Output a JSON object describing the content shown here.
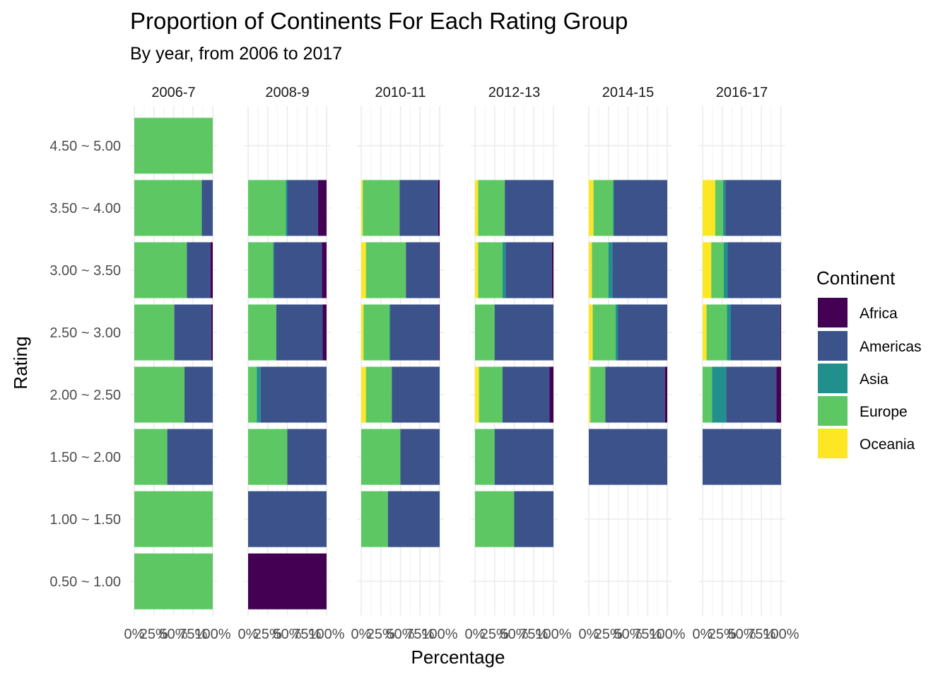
{
  "chart_data": {
    "type": "bar",
    "orientation": "horizontal-stacked-percent",
    "title": "Proportion of Continents For Each Rating Group",
    "subtitle": "By year, from 2006 to 2017",
    "xlabel": "Percentage",
    "ylabel": "Rating",
    "xlim": [
      0,
      100
    ],
    "x_ticks": [
      "0%",
      "25%",
      "50%",
      "75%",
      "100%"
    ],
    "x_tick_values": [
      0,
      25,
      50,
      75,
      100
    ],
    "categories": [
      "0.50 ~ 1.00",
      "1.00 ~ 1.50",
      "1.50 ~ 2.00",
      "2.00 ~ 2.50",
      "2.50 ~ 3.00",
      "3.00 ~ 3.50",
      "3.50 ~ 4.00",
      "4.50 ~ 5.00"
    ],
    "legend": {
      "title": "Continent",
      "placement": "right",
      "entries": [
        "Africa",
        "Americas",
        "Asia",
        "Europe",
        "Oceania"
      ]
    },
    "colors": {
      "Africa": "#440154",
      "Americas": "#3b528b",
      "Asia": "#21908c",
      "Europe": "#5dc863",
      "Oceania": "#fde725"
    },
    "grid": true,
    "stack_order_left_to_right": [
      "Oceania",
      "Europe",
      "Asia",
      "Americas",
      "Africa"
    ],
    "panels": [
      {
        "name": "2006-7",
        "bars": {
          "4.50 ~ 5.00": {
            "Oceania": 0,
            "Europe": 100,
            "Asia": 0,
            "Americas": 0,
            "Africa": 0
          },
          "3.50 ~ 4.00": {
            "Oceania": 0,
            "Europe": 86,
            "Asia": 0,
            "Americas": 14,
            "Africa": 0
          },
          "3.00 ~ 3.50": {
            "Oceania": 0,
            "Europe": 67,
            "Asia": 0,
            "Americas": 30,
            "Africa": 3
          },
          "2.50 ~ 3.00": {
            "Oceania": 0,
            "Europe": 51,
            "Asia": 0,
            "Americas": 47,
            "Africa": 2
          },
          "2.00 ~ 2.50": {
            "Oceania": 0,
            "Europe": 64,
            "Asia": 0,
            "Americas": 36,
            "Africa": 0
          },
          "1.50 ~ 2.00": {
            "Oceania": 0,
            "Europe": 42,
            "Asia": 0,
            "Americas": 58,
            "Africa": 0
          },
          "1.00 ~ 1.50": {
            "Oceania": 0,
            "Europe": 100,
            "Asia": 0,
            "Americas": 0,
            "Africa": 0
          },
          "0.50 ~ 1.00": {
            "Oceania": 0,
            "Europe": 100,
            "Asia": 0,
            "Americas": 0,
            "Africa": 0
          }
        }
      },
      {
        "name": "2008-9",
        "bars": {
          "3.50 ~ 4.00": {
            "Oceania": 0,
            "Europe": 48,
            "Asia": 2,
            "Americas": 39,
            "Africa": 11
          },
          "3.00 ~ 3.50": {
            "Oceania": 0,
            "Europe": 32,
            "Asia": 1,
            "Americas": 61,
            "Africa": 6
          },
          "2.50 ~ 3.00": {
            "Oceania": 0,
            "Europe": 36,
            "Asia": 0,
            "Americas": 59,
            "Africa": 5
          },
          "2.00 ~ 2.50": {
            "Oceania": 0,
            "Europe": 11,
            "Asia": 5,
            "Americas": 84,
            "Africa": 0
          },
          "1.50 ~ 2.00": {
            "Oceania": 0,
            "Europe": 50,
            "Asia": 0,
            "Americas": 50,
            "Africa": 0
          },
          "1.00 ~ 1.50": {
            "Oceania": 0,
            "Europe": 0,
            "Asia": 0,
            "Americas": 100,
            "Africa": 0
          },
          "0.50 ~ 1.00": {
            "Oceania": 0,
            "Europe": 0,
            "Asia": 0,
            "Americas": 0,
            "Africa": 100
          }
        }
      },
      {
        "name": "2010-11",
        "bars": {
          "3.50 ~ 4.00": {
            "Oceania": 2,
            "Europe": 47,
            "Asia": 0,
            "Americas": 49,
            "Africa": 2
          },
          "3.00 ~ 3.50": {
            "Oceania": 6,
            "Europe": 51,
            "Asia": 0,
            "Americas": 42,
            "Africa": 1
          },
          "2.50 ~ 3.00": {
            "Oceania": 3,
            "Europe": 33,
            "Asia": 1,
            "Americas": 62,
            "Africa": 1
          },
          "2.00 ~ 2.50": {
            "Oceania": 6,
            "Europe": 33,
            "Asia": 0,
            "Americas": 61,
            "Africa": 0
          },
          "1.50 ~ 2.00": {
            "Oceania": 0,
            "Europe": 50,
            "Asia": 0,
            "Americas": 50,
            "Africa": 0
          },
          "1.00 ~ 1.50": {
            "Oceania": 0,
            "Europe": 34,
            "Asia": 0,
            "Americas": 66,
            "Africa": 0
          }
        }
      },
      {
        "name": "2012-13",
        "bars": {
          "3.50 ~ 4.00": {
            "Oceania": 4,
            "Europe": 34,
            "Asia": 0,
            "Americas": 62,
            "Africa": 0
          },
          "3.00 ~ 3.50": {
            "Oceania": 4,
            "Europe": 31,
            "Asia": 4,
            "Americas": 59,
            "Africa": 2
          },
          "2.50 ~ 3.00": {
            "Oceania": 0,
            "Europe": 25,
            "Asia": 0,
            "Americas": 75,
            "Africa": 0
          },
          "2.00 ~ 2.50": {
            "Oceania": 5,
            "Europe": 30,
            "Asia": 0,
            "Americas": 60,
            "Africa": 5
          },
          "1.50 ~ 2.00": {
            "Oceania": 0,
            "Europe": 25,
            "Asia": 0,
            "Americas": 75,
            "Africa": 0
          },
          "1.00 ~ 1.50": {
            "Oceania": 0,
            "Europe": 50,
            "Asia": 0,
            "Americas": 50,
            "Africa": 0
          }
        }
      },
      {
        "name": "2014-15",
        "bars": {
          "3.50 ~ 4.00": {
            "Oceania": 6,
            "Europe": 25,
            "Asia": 1,
            "Americas": 68,
            "Africa": 0
          },
          "3.00 ~ 3.50": {
            "Oceania": 4,
            "Europe": 21,
            "Asia": 5,
            "Americas": 70,
            "Africa": 0
          },
          "2.50 ~ 3.00": {
            "Oceania": 5,
            "Europe": 29,
            "Asia": 3,
            "Americas": 63,
            "Africa": 0
          },
          "2.00 ~ 2.50": {
            "Oceania": 2,
            "Europe": 19,
            "Asia": 0,
            "Americas": 76,
            "Africa": 3
          },
          "1.50 ~ 2.00": {
            "Oceania": 0,
            "Europe": 0,
            "Asia": 0,
            "Americas": 100,
            "Africa": 0
          }
        }
      },
      {
        "name": "2016-17",
        "bars": {
          "3.50 ~ 4.00": {
            "Oceania": 16,
            "Europe": 10,
            "Asia": 3,
            "Americas": 71,
            "Africa": 0
          },
          "3.00 ~ 3.50": {
            "Oceania": 11,
            "Europe": 16,
            "Asia": 5,
            "Americas": 68,
            "Africa": 0
          },
          "2.50 ~ 3.00": {
            "Oceania": 5,
            "Europe": 26,
            "Asia": 5,
            "Americas": 63,
            "Africa": 1
          },
          "2.00 ~ 2.50": {
            "Oceania": 0,
            "Europe": 12,
            "Asia": 18,
            "Americas": 64,
            "Africa": 6
          },
          "1.50 ~ 2.00": {
            "Oceania": 0,
            "Europe": 0,
            "Asia": 0,
            "Americas": 100,
            "Africa": 0
          }
        }
      }
    ]
  }
}
